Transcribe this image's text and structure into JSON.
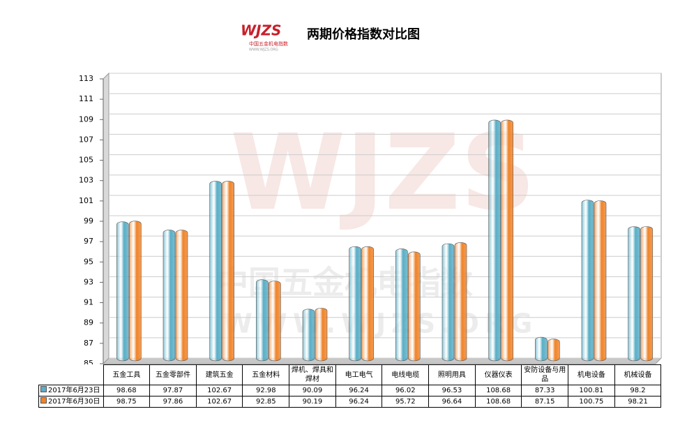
{
  "chart_data": {
    "type": "bar",
    "title": "两期价格指数对比图",
    "logo": "WJZS",
    "logo_subtitle": "中国五金机电指数",
    "logo_url": "WWW.WJZS.ORG",
    "categories": [
      "五金工具",
      "五金零部件",
      "建筑五金",
      "五金材料",
      "焊机、焊具和焊材",
      "电工电气",
      "电线电缆",
      "照明用具",
      "仪器仪表",
      "安防设备与用品",
      "机电设备",
      "机械设备"
    ],
    "series": [
      {
        "name": "2017年6月23日",
        "color": "#5aaec6",
        "values": [
          98.68,
          97.87,
          102.67,
          92.98,
          90.09,
          96.24,
          96.02,
          96.53,
          108.68,
          87.33,
          100.81,
          98.2
        ]
      },
      {
        "name": "2017年6月30日",
        "color": "#f0842a",
        "values": [
          98.75,
          97.86,
          102.67,
          92.85,
          90.19,
          96.24,
          95.72,
          96.64,
          108.68,
          87.15,
          100.75,
          98.21
        ]
      }
    ],
    "ylim": [
      85,
      113
    ],
    "yticks": [
      85,
      87,
      89,
      91,
      93,
      95,
      97,
      99,
      101,
      103,
      105,
      107,
      109,
      111,
      113
    ],
    "grid": true
  }
}
